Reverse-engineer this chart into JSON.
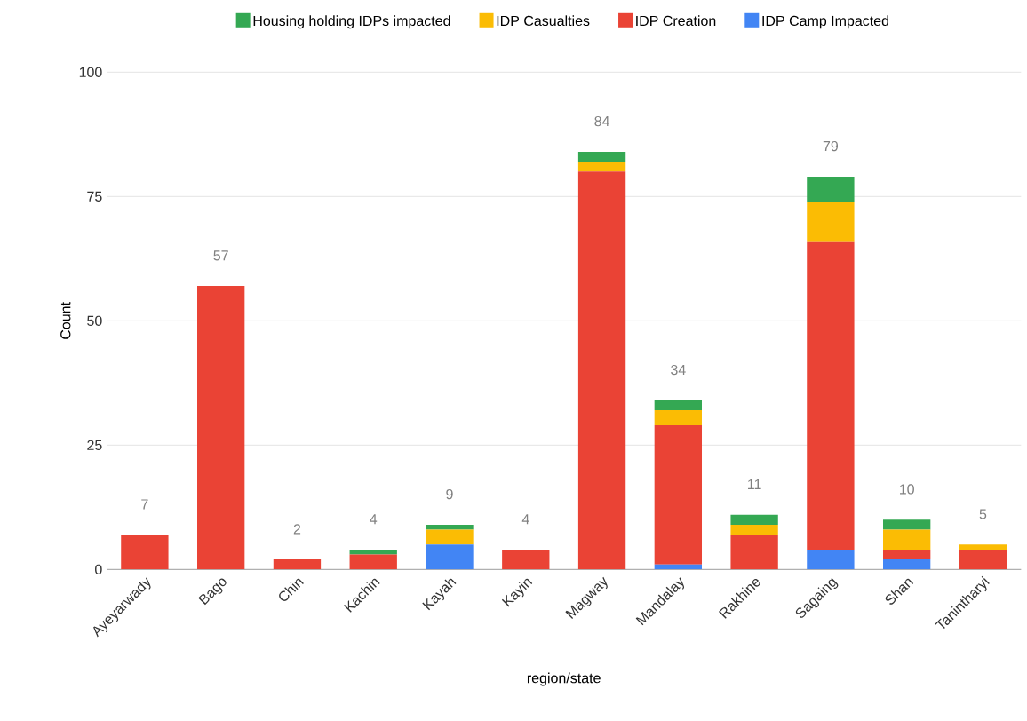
{
  "chart_data": {
    "type": "bar",
    "stacked": true,
    "xlabel": "region/state",
    "ylabel": "Count",
    "categories": [
      "Ayeyarwady",
      "Bago",
      "Chin",
      "Kachin",
      "Kayah",
      "Kayin",
      "Magway",
      "Mandalay",
      "Rakhine",
      "Sagaing",
      "Shan",
      "Tanintharyi"
    ],
    "series": [
      {
        "name": "IDP Camp Impacted",
        "color": "#4285f4",
        "values": [
          0,
          0,
          0,
          0,
          5,
          0,
          0,
          1,
          0,
          4,
          2,
          0
        ]
      },
      {
        "name": "IDP Creation",
        "color": "#ea4335",
        "values": [
          7,
          57,
          2,
          3,
          0,
          4,
          80,
          28,
          7,
          62,
          2,
          4
        ]
      },
      {
        "name": "IDP Casualties",
        "color": "#fbbc04",
        "values": [
          0,
          0,
          0,
          0,
          3,
          0,
          2,
          3,
          2,
          8,
          4,
          1
        ]
      },
      {
        "name": "Housing holding IDPs impacted",
        "color": "#34a853",
        "values": [
          0,
          0,
          0,
          1,
          1,
          0,
          2,
          2,
          2,
          5,
          2,
          0
        ]
      }
    ],
    "totals": [
      "7",
      "57",
      "2",
      "4",
      "9",
      "4",
      "84",
      "34",
      "11",
      "79",
      "10",
      "5"
    ],
    "ylim": [
      0,
      100
    ],
    "yticks": [
      0,
      25,
      50,
      75,
      100
    ],
    "grid": "y",
    "legend": "top"
  }
}
